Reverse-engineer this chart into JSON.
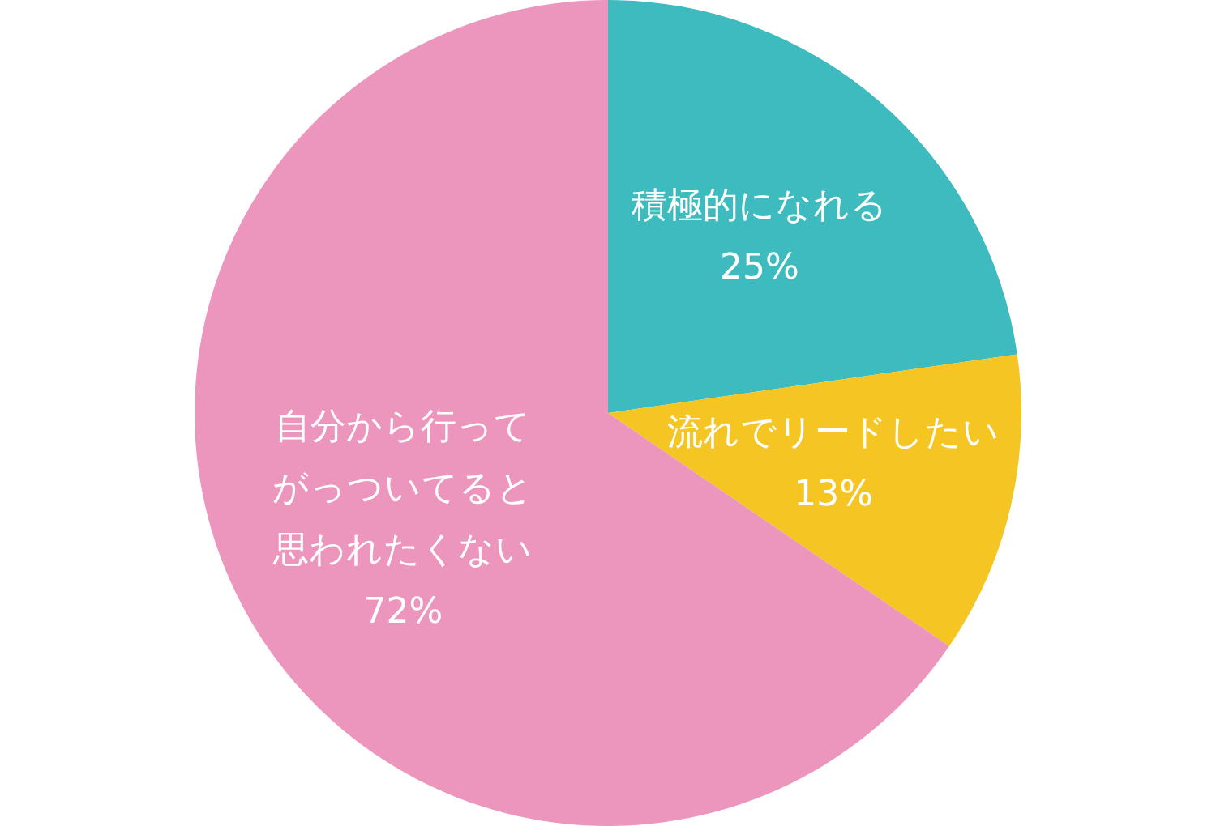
{
  "chart_data": {
    "type": "pie",
    "categories": [
      "積極的になれる",
      "流れでリードしたい",
      "自分から行ってがっついてると思われたくない"
    ],
    "values": [
      25,
      13,
      72
    ],
    "colors": [
      "#3dbbbf",
      "#f5c623",
      "#ec96bd"
    ],
    "value_labels": [
      "25%",
      "13%",
      "72%"
    ],
    "legend": false
  }
}
